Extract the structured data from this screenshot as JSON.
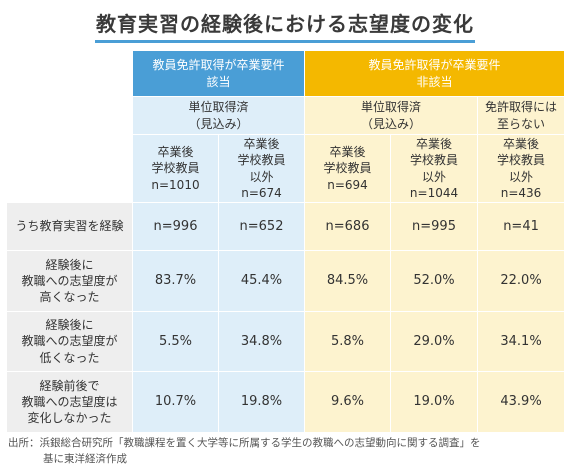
{
  "title": "教育実習の経験後における志望度の変化",
  "headers": {
    "group_eligible": [
      "教員免許取得が卒業要件",
      "該当"
    ],
    "group_ineligible": [
      "教員免許取得が卒業要件",
      "非該当"
    ],
    "sub_credits_a": [
      "単位取得済",
      "（見込み）"
    ],
    "sub_credits_b": [
      "単位取得済",
      "（見込み）"
    ],
    "sub_no_license": [
      "免許取得には",
      "至らない"
    ],
    "columns": [
      [
        "卒業後",
        "学校教員",
        "n=1010"
      ],
      [
        "卒業後",
        "学校教員",
        "以外",
        "n=674"
      ],
      [
        "卒業後",
        "学校教員",
        "n=694"
      ],
      [
        "卒業後",
        "学校教員",
        "以外",
        "n=1044"
      ],
      [
        "卒業後",
        "学校教員",
        "以外",
        "n=436"
      ]
    ]
  },
  "rows": [
    {
      "label": [
        "うち教育実習を経験"
      ],
      "values": [
        "n=996",
        "n=652",
        "n=686",
        "n=995",
        "n=41"
      ]
    },
    {
      "label": [
        "経験後に",
        "教職への志望度が",
        "高くなった"
      ],
      "values": [
        "83.7%",
        "45.4%",
        "84.5%",
        "52.0%",
        "22.0%"
      ]
    },
    {
      "label": [
        "経験後に",
        "教職への志望度が",
        "低くなった"
      ],
      "values": [
        "5.5%",
        "34.8%",
        "5.8%",
        "29.0%",
        "34.1%"
      ]
    },
    {
      "label": [
        "経験前後で",
        "教職への志望度は",
        "変化しなかった"
      ],
      "values": [
        "10.7%",
        "19.8%",
        "9.6%",
        "19.0%",
        "43.9%"
      ]
    }
  ],
  "source": [
    "出所：浜銀総合研究所「教職課程を置く大学等に所属する学生の教職への志望動向に関する調査」を",
    "基に東洋経済作成"
  ],
  "colors": {
    "blue_header": "#4a9ed6",
    "yellow_header": "#f4b800",
    "blue_light": "#deeef9",
    "yellow_light": "#fdf3cf",
    "row_label_bg": "#eeeeee"
  }
}
